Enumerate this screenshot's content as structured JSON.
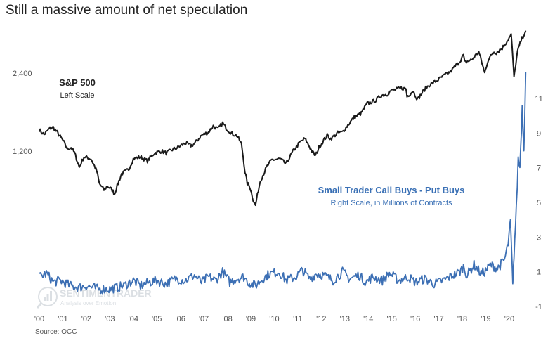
{
  "title": "Still a massive amount of net speculation",
  "source": "Source: OCC",
  "watermark": {
    "name": "SENTIMENTRADER",
    "tagline": "Analysis over Emotion"
  },
  "colors": {
    "spx": "#1a1a1a",
    "flow": "#3c6fb4",
    "text": "#222222",
    "annotation_blue": "#3a70b5"
  },
  "chart_data": {
    "type": "line",
    "x_axis": {
      "ticks": [
        "'00",
        "'01",
        "'02",
        "'03",
        "'04",
        "'05",
        "'06",
        "'07",
        "'08",
        "'09",
        "'10",
        "'11",
        "'12",
        "'13",
        "'14",
        "'15",
        "'16",
        "'17",
        "'18",
        "'19",
        "'20"
      ],
      "range": [
        2000.0,
        2020.75
      ]
    },
    "left_axis": {
      "scale": "log",
      "ticks": [
        1200,
        2400
      ],
      "tick_labels": [
        "1,200",
        "2,400"
      ]
    },
    "right_axis": {
      "scale": "linear",
      "range": [
        -1.5,
        13.5
      ],
      "ticks": [
        -1,
        1,
        3,
        5,
        7,
        9,
        11
      ],
      "tick_labels": [
        "-1",
        "1",
        "3",
        "5",
        "7",
        "9",
        "11"
      ]
    },
    "legend": "none",
    "grid": false,
    "annotations": [
      {
        "text": "S&P 500",
        "sub": "Left Scale",
        "position": "upper-left"
      },
      {
        "text": "Small Trader Call Buys - Put Buys",
        "sub": "Right Scale, in Millions of Contracts",
        "position": "middle-right"
      }
    ],
    "series": [
      {
        "name": "S&P 500",
        "axis": "left",
        "x": [
          2000.0,
          2000.2,
          2000.45,
          2000.6,
          2000.75,
          2001.0,
          2001.2,
          2001.35,
          2001.5,
          2001.7,
          2001.9,
          2002.2,
          2002.45,
          2002.55,
          2002.75,
          2002.9,
          2003.1,
          2003.2,
          2003.5,
          2003.8,
          2004.0,
          2004.3,
          2004.6,
          2004.9,
          2005.2,
          2005.4,
          2005.7,
          2005.9,
          2006.2,
          2006.45,
          2006.6,
          2006.9,
          2007.2,
          2007.4,
          2007.6,
          2007.8,
          2007.95,
          2008.2,
          2008.4,
          2008.6,
          2008.75,
          2008.85,
          2008.95,
          2009.1,
          2009.2,
          2009.4,
          2009.7,
          2009.9,
          2010.25,
          2010.5,
          2010.8,
          2011.1,
          2011.3,
          2011.6,
          2011.75,
          2011.9,
          2012.25,
          2012.4,
          2012.7,
          2012.9,
          2013.4,
          2013.7,
          2013.95,
          2014.3,
          2014.55,
          2014.8,
          2014.95,
          2015.4,
          2015.6,
          2015.65,
          2015.9,
          2016.1,
          2016.4,
          2016.6,
          2016.9,
          2017.2,
          2017.5,
          2017.9,
          2018.05,
          2018.1,
          2018.4,
          2018.7,
          2018.95,
          2019.1,
          2019.35,
          2019.45,
          2019.7,
          2019.95,
          2020.08,
          2020.2,
          2020.35,
          2020.5,
          2020.7
        ],
        "y": [
          1450,
          1390,
          1470,
          1480,
          1420,
          1320,
          1220,
          1240,
          1180,
          1040,
          1140,
          1120,
          1000,
          900,
          850,
          880,
          850,
          820,
          980,
          1020,
          1120,
          1140,
          1100,
          1180,
          1200,
          1180,
          1220,
          1240,
          1290,
          1260,
          1280,
          1380,
          1420,
          1500,
          1460,
          1540,
          1470,
          1400,
          1380,
          1280,
          1000,
          900,
          880,
          780,
          740,
          920,
          1050,
          1110,
          1120,
          1070,
          1200,
          1300,
          1340,
          1200,
          1150,
          1240,
          1380,
          1340,
          1410,
          1420,
          1620,
          1680,
          1830,
          1880,
          1970,
          1990,
          2050,
          2100,
          2090,
          1950,
          2050,
          1900,
          2080,
          2160,
          2240,
          2340,
          2430,
          2670,
          2820,
          2640,
          2700,
          2900,
          2400,
          2700,
          2900,
          2880,
          3000,
          3230,
          3370,
          2300,
          2900,
          3200,
          3500
        ]
      },
      {
        "name": "Small Trader Call Buys - Put Buys",
        "axis": "right",
        "x": [
          2000.0,
          2000.3,
          2000.6,
          2000.9,
          2001.3,
          2001.7,
          2002.0,
          2002.5,
          2003.0,
          2003.3,
          2003.6,
          2004.0,
          2004.3,
          2004.7,
          2005.0,
          2005.4,
          2005.8,
          2006.2,
          2006.6,
          2006.9,
          2007.2,
          2007.5,
          2007.8,
          2008.1,
          2008.4,
          2008.7,
          2008.9,
          2009.2,
          2009.5,
          2009.8,
          2010.2,
          2010.5,
          2010.9,
          2011.2,
          2011.5,
          2011.8,
          2012.1,
          2012.5,
          2012.9,
          2013.2,
          2013.6,
          2013.9,
          2014.2,
          2014.6,
          2014.9,
          2015.3,
          2015.7,
          2016.0,
          2016.4,
          2016.8,
          2017.2,
          2017.6,
          2017.9,
          2018.05,
          2018.2,
          2018.5,
          2018.8,
          2018.95,
          2019.2,
          2019.5,
          2019.8,
          2019.95,
          2020.05,
          2020.15,
          2020.2,
          2020.3,
          2020.38,
          2020.45,
          2020.55,
          2020.62,
          2020.7
        ],
        "y": [
          0.7,
          0.9,
          0.4,
          0.5,
          0.2,
          0.1,
          0.2,
          0.0,
          0.0,
          0.1,
          0.2,
          0.5,
          0.2,
          0.4,
          0.5,
          0.3,
          0.6,
          0.5,
          0.8,
          0.4,
          0.7,
          0.5,
          1.0,
          0.4,
          0.6,
          0.7,
          0.4,
          0.2,
          0.6,
          0.9,
          1.0,
          0.5,
          0.7,
          1.1,
          0.6,
          0.9,
          0.8,
          0.5,
          1.0,
          0.6,
          0.8,
          0.4,
          0.7,
          0.5,
          0.9,
          0.5,
          0.7,
          0.4,
          0.6,
          0.3,
          0.5,
          0.8,
          1.0,
          1.3,
          0.8,
          1.4,
          0.9,
          1.0,
          1.4,
          1.2,
          1.7,
          2.6,
          3.9,
          0.2,
          2.0,
          4.6,
          7.5,
          7.0,
          10.5,
          8.0,
          12.5
        ]
      }
    ]
  }
}
